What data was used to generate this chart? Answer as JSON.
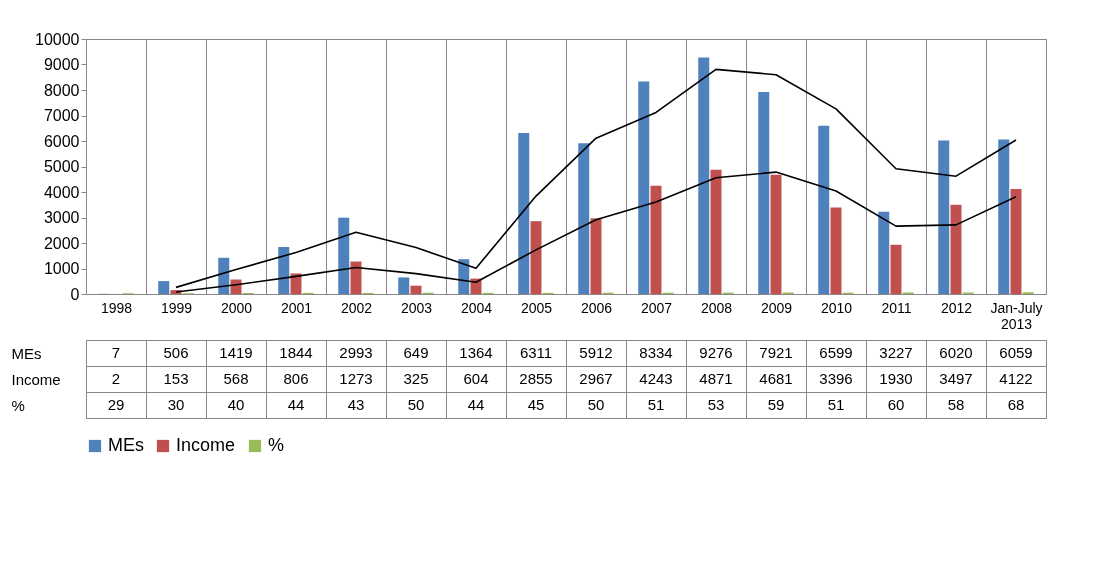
{
  "chart_data": {
    "type": "bar",
    "categories": [
      "1998",
      "1999",
      "2000",
      "2001",
      "2002",
      "2003",
      "2004",
      "2005",
      "2006",
      "2007",
      "2008",
      "2009",
      "2010",
      "2011",
      "2012",
      "Jan-July 2013"
    ],
    "series": [
      {
        "name": "MEs",
        "color": "#4f81bd",
        "values": [
          7,
          506,
          1419,
          1844,
          2993,
          649,
          1364,
          6311,
          5912,
          8334,
          9276,
          7921,
          6599,
          3227,
          6020,
          6059
        ],
        "value_labels": [
          "7",
          "506",
          "1419",
          "1844",
          "2993",
          "649",
          "1364",
          "6311",
          "5912",
          "8334",
          "9276",
          "7921",
          "6599",
          "3227",
          "6020",
          "6059"
        ]
      },
      {
        "name": "Income",
        "color": "#c0504d",
        "values": [
          2,
          153,
          568,
          806,
          1273,
          325,
          604,
          2855,
          2967,
          4243,
          4871,
          4681,
          3396,
          1930,
          3497,
          4122
        ],
        "value_labels": [
          "2",
          "153",
          "568",
          "806",
          "1273",
          "325",
          "604",
          "2855",
          "2967",
          "4243",
          "4871",
          "4681",
          "3396",
          "1930",
          "3497",
          "4122"
        ]
      },
      {
        "name": "%",
        "color": "#9bbb59",
        "values": [
          29,
          30,
          40,
          44,
          43,
          50,
          44,
          45,
          50,
          51,
          53,
          59,
          51,
          60,
          58,
          68
        ],
        "value_labels": [
          "29",
          "30",
          "40",
          "44",
          "43",
          "50",
          "44",
          "45",
          "50",
          "51",
          "53",
          "59",
          "51",
          "60",
          "58",
          "68"
        ]
      },
      {
        "type": "line",
        "color": "#000000",
        "values": [
          null,
          260,
          960,
          1630,
          2420,
          1820,
          1010,
          3840,
          6110,
          7120,
          8810,
          8600,
          7260,
          4910,
          4620,
          6040
        ]
      },
      {
        "type": "line",
        "color": "#000000",
        "values": [
          null,
          80,
          360,
          690,
          1040,
          800,
          460,
          1730,
          2910,
          3610,
          4560,
          4780,
          4040,
          2660,
          2710,
          3810
        ]
      }
    ],
    "ylim": [
      0,
      10000
    ],
    "yticks": [
      0,
      1000,
      2000,
      3000,
      4000,
      5000,
      6000,
      7000,
      8000,
      9000,
      10000
    ],
    "legend": "bottom"
  }
}
